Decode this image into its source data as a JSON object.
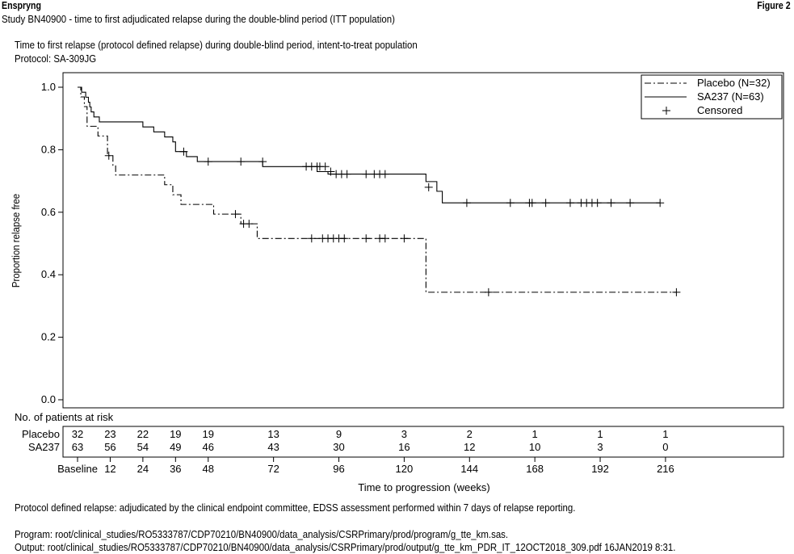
{
  "header": {
    "product": "Enspryng",
    "figure_label": "Figure 2",
    "subtitle": "Study BN40900 - time to first adjudicated relapse during the double-blind period (ITT population)"
  },
  "chart_title": {
    "line1": "Time to first relapse (protocol defined relapse) during double-blind period, intent-to-treat population",
    "line2": "Protocol: SA-309JG"
  },
  "footer": {
    "note": "Protocol defined relapse: adjudicated by the clinical endpoint committee, EDSS assessment performed within 7 days of relapse reporting.",
    "program": "Program: root/clinical_studies/RO5333787/CDP70210/BN40900/data_analysis/CSRPrimary/prod/program/g_tte_km.sas.",
    "output": "Output: root/clinical_studies/RO5333787/CDP70210/BN40900/data_analysis/CSRPrimary/prod/output/g_tte_km_PDR_IT_12OCT2018_309.pdf 16JAN2019 8:31."
  },
  "chart_data": {
    "type": "line",
    "subtype": "kaplan-meier",
    "xlabel": "Time to progression (weeks)",
    "ylabel": "Proportion relapse free",
    "xlim": [
      0,
      222
    ],
    "ylim": [
      0,
      1.0
    ],
    "y_ticks": [
      0.0,
      0.2,
      0.4,
      0.6,
      0.8,
      1.0
    ],
    "y_tick_labels": [
      "0.0",
      "0.2",
      "0.4",
      "0.6",
      "0.8",
      "1.0"
    ],
    "x_ticks": [
      0,
      12,
      24,
      36,
      48,
      72,
      96,
      120,
      144,
      168,
      192,
      216
    ],
    "x_tick_labels": [
      "Baseline",
      "12",
      "24",
      "36",
      "48",
      "72",
      "96",
      "120",
      "144",
      "168",
      "192",
      "216"
    ],
    "legend": {
      "placement": "top-right",
      "entries": [
        "Placebo (N=32)",
        "SA237 (N=63)",
        "Censored"
      ]
    },
    "series": [
      {
        "name": "Placebo (N=32)",
        "style": "dash-dot",
        "steps": [
          [
            0,
            1.0
          ],
          [
            1.2,
            0.969
          ],
          [
            2.5,
            0.938
          ],
          [
            3.5,
            0.875
          ],
          [
            7.5,
            0.844
          ],
          [
            11,
            0.781
          ],
          [
            13,
            0.75
          ],
          [
            14,
            0.719
          ],
          [
            32,
            0.688
          ],
          [
            35,
            0.656
          ],
          [
            38,
            0.625
          ],
          [
            50,
            0.594
          ],
          [
            60,
            0.563
          ],
          [
            66,
            0.516
          ],
          [
            128,
            0.344
          ],
          [
            220,
            0.344
          ]
        ],
        "censored": [
          [
            11.5,
            0.781
          ],
          [
            58,
            0.594
          ],
          [
            61,
            0.563
          ],
          [
            63,
            0.563
          ],
          [
            86,
            0.516
          ],
          [
            90,
            0.516
          ],
          [
            92,
            0.516
          ],
          [
            94,
            0.516
          ],
          [
            96,
            0.516
          ],
          [
            98,
            0.516
          ],
          [
            106,
            0.516
          ],
          [
            111,
            0.516
          ],
          [
            113,
            0.516
          ],
          [
            120,
            0.516
          ],
          [
            151,
            0.344
          ],
          [
            220,
            0.344
          ]
        ]
      },
      {
        "name": "SA237 (N=63)",
        "style": "solid",
        "steps": [
          [
            0,
            1.0
          ],
          [
            1.5,
            0.984
          ],
          [
            3,
            0.968
          ],
          [
            4,
            0.952
          ],
          [
            4.5,
            0.937
          ],
          [
            5,
            0.921
          ],
          [
            6,
            0.905
          ],
          [
            8,
            0.889
          ],
          [
            24,
            0.873
          ],
          [
            28,
            0.857
          ],
          [
            32,
            0.841
          ],
          [
            35,
            0.825
          ],
          [
            36,
            0.794
          ],
          [
            40,
            0.778
          ],
          [
            44,
            0.762
          ],
          [
            62,
            0.762
          ],
          [
            68,
            0.746
          ],
          [
            80,
            0.746
          ],
          [
            88,
            0.73
          ],
          [
            92,
            0.722
          ],
          [
            125,
            0.722
          ],
          [
            128,
            0.698
          ],
          [
            132,
            0.667
          ],
          [
            134,
            0.63
          ],
          [
            214,
            0.63
          ]
        ],
        "censored": [
          [
            39,
            0.794
          ],
          [
            48,
            0.762
          ],
          [
            60,
            0.762
          ],
          [
            68,
            0.762
          ],
          [
            84,
            0.746
          ],
          [
            86,
            0.746
          ],
          [
            88,
            0.746
          ],
          [
            89,
            0.746
          ],
          [
            91,
            0.746
          ],
          [
            93,
            0.73
          ],
          [
            95,
            0.722
          ],
          [
            97,
            0.722
          ],
          [
            99,
            0.722
          ],
          [
            106,
            0.722
          ],
          [
            109,
            0.722
          ],
          [
            111,
            0.722
          ],
          [
            113,
            0.722
          ],
          [
            129,
            0.68
          ],
          [
            143,
            0.63
          ],
          [
            159,
            0.63
          ],
          [
            166,
            0.63
          ],
          [
            167,
            0.63
          ],
          [
            172,
            0.63
          ],
          [
            181,
            0.63
          ],
          [
            185,
            0.63
          ],
          [
            187,
            0.63
          ],
          [
            189,
            0.63
          ],
          [
            191,
            0.63
          ],
          [
            196,
            0.63
          ],
          [
            203,
            0.63
          ],
          [
            214,
            0.63
          ]
        ]
      }
    ],
    "risk_table": {
      "title": "No. of patients at risk",
      "rows": [
        {
          "label": "Placebo",
          "values": [
            "32",
            "23",
            "22",
            "19",
            "19",
            "13",
            "9",
            "3",
            "2",
            "1",
            "1",
            "1"
          ]
        },
        {
          "label": "SA237",
          "values": [
            "63",
            "56",
            "54",
            "49",
            "46",
            "43",
            "30",
            "16",
            "12",
            "10",
            "3",
            "0"
          ]
        }
      ]
    }
  }
}
